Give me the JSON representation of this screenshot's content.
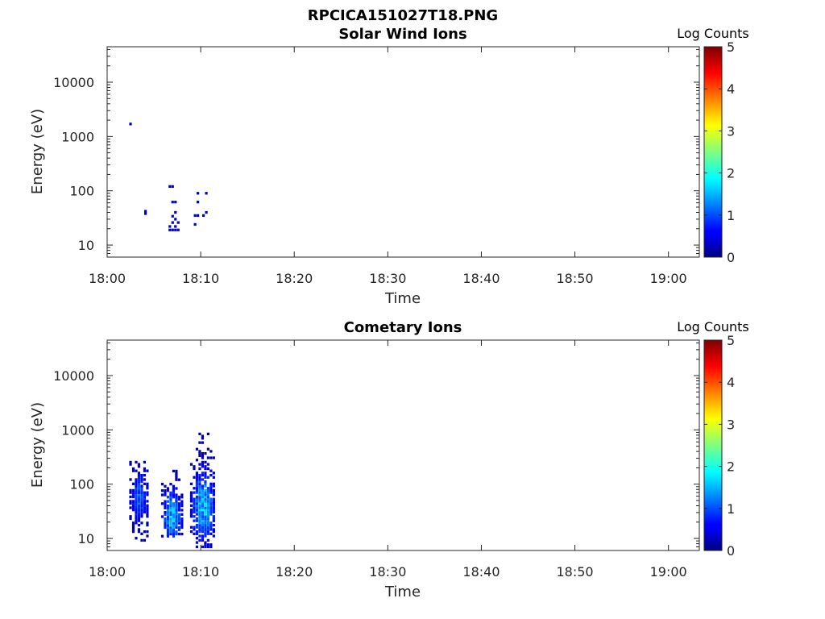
{
  "figure": {
    "title": "RPCICA151027T18.PNG"
  },
  "colorbar": {
    "label": "Log Counts",
    "ticks": [
      0,
      1,
      2,
      3,
      4,
      5
    ],
    "range": [
      0,
      5
    ],
    "colormap": "jet"
  },
  "chart_data": [
    {
      "type": "heatmap",
      "title": "Solar Wind Ions",
      "xlabel": "Time",
      "ylabel": "Energy (eV)",
      "x_ticks": [
        "18:00",
        "18:10",
        "18:20",
        "18:30",
        "18:40",
        "18:50",
        "19:00"
      ],
      "x_range_minutes": [
        0,
        63.3
      ],
      "y_ticks": [
        10,
        100,
        1000,
        10000
      ],
      "y_scale": "log",
      "y_range": [
        6,
        45000
      ],
      "color_scale": "log counts 0-5",
      "cells": [
        {
          "t": 2.5,
          "e": 1700,
          "v": 0.3
        },
        {
          "t": 4.1,
          "e": 42,
          "v": 0.3
        },
        {
          "t": 4.1,
          "e": 38,
          "v": 0.3
        },
        {
          "t": 6.7,
          "e": 120,
          "v": 0.3
        },
        {
          "t": 7.0,
          "e": 120,
          "v": 0.3
        },
        {
          "t": 7.0,
          "e": 62,
          "v": 0.4
        },
        {
          "t": 7.3,
          "e": 62,
          "v": 0.4
        },
        {
          "t": 7.3,
          "e": 40,
          "v": 0.3
        },
        {
          "t": 7.0,
          "e": 34,
          "v": 0.3
        },
        {
          "t": 7.3,
          "e": 30,
          "v": 0.4
        },
        {
          "t": 7.0,
          "e": 26,
          "v": 0.3
        },
        {
          "t": 7.6,
          "e": 26,
          "v": 0.3
        },
        {
          "t": 6.7,
          "e": 22,
          "v": 0.3
        },
        {
          "t": 7.3,
          "e": 22,
          "v": 0.4
        },
        {
          "t": 6.7,
          "e": 19,
          "v": 0.4
        },
        {
          "t": 7.0,
          "e": 19,
          "v": 0.4
        },
        {
          "t": 7.3,
          "e": 19,
          "v": 0.4
        },
        {
          "t": 7.6,
          "e": 19,
          "v": 0.4
        },
        {
          "t": 9.7,
          "e": 90,
          "v": 0.3
        },
        {
          "t": 10.6,
          "e": 90,
          "v": 0.3
        },
        {
          "t": 9.7,
          "e": 62,
          "v": 0.3
        },
        {
          "t": 10.6,
          "e": 40,
          "v": 0.3
        },
        {
          "t": 9.4,
          "e": 35,
          "v": 0.3
        },
        {
          "t": 9.7,
          "e": 35,
          "v": 0.3
        },
        {
          "t": 10.3,
          "e": 35,
          "v": 0.3
        },
        {
          "t": 9.4,
          "e": 24,
          "v": 0.3
        }
      ]
    },
    {
      "type": "heatmap",
      "title": "Cometary Ions",
      "xlabel": "Time",
      "ylabel": "Energy (eV)",
      "x_ticks": [
        "18:00",
        "18:10",
        "18:20",
        "18:30",
        "18:40",
        "18:50",
        "19:00"
      ],
      "x_range_minutes": [
        0,
        63.3
      ],
      "y_ticks": [
        10,
        100,
        1000,
        10000
      ],
      "y_scale": "log",
      "y_range": [
        6,
        45000
      ],
      "color_scale": "log counts 0-5",
      "bursts": [
        {
          "t_start": 2.5,
          "t_end": 4.4,
          "e_min": 7,
          "e_max": 300,
          "peak": 1.3,
          "peak_e": 55
        },
        {
          "t_start": 5.9,
          "t_end": 8.1,
          "e_min": 11,
          "e_max": 330,
          "peak": 1.9,
          "peak_e": 26
        },
        {
          "t_start": 9.0,
          "t_end": 11.6,
          "e_min": 7,
          "e_max": 850,
          "peak": 1.9,
          "peak_e": 38
        }
      ]
    }
  ]
}
